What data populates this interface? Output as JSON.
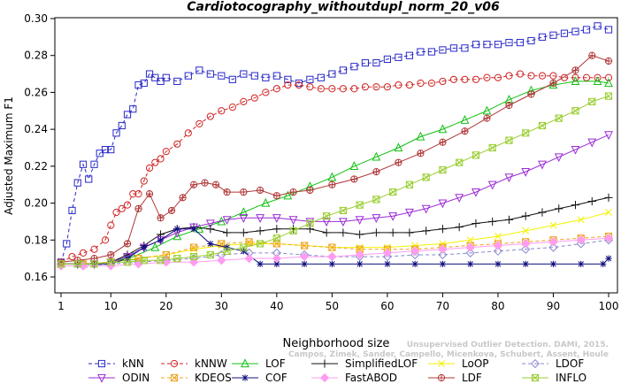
{
  "chart_data": {
    "type": "line",
    "title": "Cardiotocography_withoutdupl_norm_20_v06",
    "xlabel": "Neighborhood size",
    "ylabel": "Adjusted Maximum F1",
    "xlim": [
      1,
      100
    ],
    "ylim": [
      0.155,
      0.3
    ],
    "xticks": [
      1,
      10,
      20,
      30,
      40,
      50,
      60,
      70,
      80,
      90,
      100
    ],
    "yticks": [
      0.16,
      0.18,
      0.2,
      0.22,
      0.24,
      0.26,
      0.28,
      0.3
    ],
    "ytick_labels": [
      "0.16",
      "0.18",
      "0.20",
      "0.22",
      "0.24",
      "0.26",
      "0.28",
      "0.30"
    ],
    "grid": false,
    "legend_position": "bottom",
    "watermark": "Campos, Zimek, Sander, Campello, Micenkova, Schubert, Assent, Houle: On the Evaluation of Unsupervised Outlier Detection. DAMI, 2015.",
    "watermark_lines": [
      "Unsupervised Outlier Detection. DAMI, 2015.",
      "Campos, Zimek, Sander, Campello, Micenkova, Schubert, Assent, Houle"
    ],
    "series": [
      {
        "name": "kNN",
        "color": "#2929c8",
        "marker": "square",
        "dash": "4,3",
        "x": [
          1,
          2,
          3,
          4,
          5,
          6,
          7,
          8,
          9,
          10,
          11,
          12,
          13,
          14,
          15,
          16,
          17,
          18,
          19,
          20,
          22,
          24,
          26,
          28,
          30,
          32,
          34,
          36,
          38,
          40,
          42,
          44,
          46,
          48,
          50,
          52,
          54,
          56,
          58,
          60,
          62,
          64,
          66,
          68,
          70,
          72,
          74,
          76,
          78,
          80,
          82,
          84,
          86,
          88,
          90,
          92,
          94,
          96,
          98,
          100
        ],
        "y": [
          0.168,
          0.178,
          0.196,
          0.211,
          0.221,
          0.213,
          0.221,
          0.227,
          0.229,
          0.229,
          0.238,
          0.242,
          0.248,
          0.251,
          0.264,
          0.265,
          0.27,
          0.268,
          0.266,
          0.268,
          0.266,
          0.269,
          0.272,
          0.27,
          0.269,
          0.267,
          0.27,
          0.269,
          0.268,
          0.269,
          0.267,
          0.265,
          0.267,
          0.268,
          0.27,
          0.272,
          0.274,
          0.276,
          0.276,
          0.278,
          0.279,
          0.28,
          0.282,
          0.282,
          0.283,
          0.284,
          0.284,
          0.286,
          0.286,
          0.286,
          0.287,
          0.287,
          0.288,
          0.29,
          0.291,
          0.292,
          0.293,
          0.294,
          0.296,
          0.294
        ]
      },
      {
        "name": "kNNW",
        "color": "#d02424",
        "marker": "circle",
        "dash": "4,3",
        "x": [
          1,
          3,
          5,
          7,
          9,
          10,
          11,
          12,
          13,
          14,
          15,
          16,
          17,
          18,
          19,
          20,
          22,
          24,
          26,
          28,
          30,
          32,
          34,
          36,
          38,
          40,
          42,
          44,
          46,
          48,
          50,
          52,
          54,
          56,
          58,
          60,
          62,
          64,
          66,
          68,
          70,
          72,
          74,
          76,
          78,
          80,
          82,
          84,
          86,
          88,
          90,
          92,
          94,
          96,
          98,
          100
        ],
        "y": [
          0.168,
          0.171,
          0.173,
          0.175,
          0.18,
          0.188,
          0.195,
          0.197,
          0.199,
          0.205,
          0.205,
          0.212,
          0.219,
          0.222,
          0.224,
          0.228,
          0.232,
          0.238,
          0.243,
          0.247,
          0.25,
          0.252,
          0.255,
          0.257,
          0.26,
          0.262,
          0.264,
          0.264,
          0.263,
          0.262,
          0.262,
          0.262,
          0.262,
          0.263,
          0.263,
          0.263,
          0.264,
          0.264,
          0.265,
          0.265,
          0.266,
          0.267,
          0.267,
          0.267,
          0.268,
          0.268,
          0.269,
          0.27,
          0.269,
          0.269,
          0.269,
          0.268,
          0.268,
          0.268,
          0.268,
          0.268
        ]
      },
      {
        "name": "LOF",
        "color": "#12c012",
        "marker": "triangle",
        "dash": "",
        "x": [
          1,
          5,
          10,
          14,
          18,
          22,
          26,
          30,
          34,
          38,
          42,
          46,
          50,
          54,
          58,
          62,
          66,
          70,
          74,
          78,
          82,
          86,
          90,
          94,
          98,
          100
        ],
        "y": [
          0.167,
          0.167,
          0.168,
          0.171,
          0.176,
          0.182,
          0.186,
          0.19,
          0.195,
          0.2,
          0.204,
          0.209,
          0.214,
          0.22,
          0.225,
          0.23,
          0.236,
          0.24,
          0.245,
          0.25,
          0.256,
          0.261,
          0.264,
          0.266,
          0.266,
          0.265
        ]
      },
      {
        "name": "SimplifiedLOF",
        "color": "#111111",
        "marker": "plus",
        "dash": "",
        "x": [
          1,
          4,
          7,
          10,
          13,
          16,
          19,
          22,
          25,
          28,
          31,
          34,
          37,
          40,
          43,
          46,
          49,
          52,
          55,
          58,
          61,
          64,
          67,
          70,
          73,
          76,
          79,
          82,
          85,
          88,
          91,
          94,
          97,
          100
        ],
        "y": [
          0.167,
          0.167,
          0.167,
          0.168,
          0.172,
          0.177,
          0.183,
          0.186,
          0.187,
          0.186,
          0.184,
          0.184,
          0.185,
          0.186,
          0.186,
          0.186,
          0.184,
          0.184,
          0.183,
          0.184,
          0.184,
          0.184,
          0.185,
          0.186,
          0.187,
          0.189,
          0.19,
          0.191,
          0.193,
          0.195,
          0.197,
          0.199,
          0.201,
          0.203
        ]
      },
      {
        "name": "LoOP",
        "color": "#f2f200",
        "marker": "x",
        "dash": "",
        "x": [
          1,
          5,
          10,
          15,
          20,
          25,
          30,
          35,
          40,
          45,
          50,
          55,
          60,
          65,
          70,
          75,
          80,
          85,
          90,
          95,
          100
        ],
        "y": [
          0.167,
          0.167,
          0.168,
          0.17,
          0.172,
          0.175,
          0.177,
          0.178,
          0.178,
          0.177,
          0.176,
          0.176,
          0.176,
          0.177,
          0.178,
          0.18,
          0.182,
          0.185,
          0.188,
          0.191,
          0.195
        ]
      },
      {
        "name": "LDOF",
        "color": "#8a8ad0",
        "marker": "diamond",
        "dash": "4,3",
        "x": [
          1,
          5,
          10,
          15,
          20,
          25,
          30,
          35,
          40,
          45,
          50,
          55,
          60,
          65,
          70,
          75,
          80,
          85,
          90,
          95,
          100
        ],
        "y": [
          0.166,
          0.166,
          0.167,
          0.168,
          0.169,
          0.17,
          0.172,
          0.173,
          0.173,
          0.172,
          0.171,
          0.171,
          0.171,
          0.172,
          0.172,
          0.173,
          0.174,
          0.175,
          0.176,
          0.178,
          0.18
        ]
      },
      {
        "name": "ODIN",
        "color": "#9b2bd6",
        "marker": "triangle-down",
        "dash": "",
        "x": [
          1,
          4,
          7,
          10,
          13,
          16,
          19,
          22,
          25,
          28,
          31,
          34,
          37,
          40,
          43,
          46,
          49,
          52,
          55,
          58,
          61,
          64,
          67,
          70,
          73,
          76,
          79,
          82,
          85,
          88,
          91,
          94,
          97,
          100
        ],
        "y": [
          0.167,
          0.167,
          0.167,
          0.168,
          0.171,
          0.176,
          0.18,
          0.184,
          0.187,
          0.189,
          0.191,
          0.192,
          0.192,
          0.192,
          0.191,
          0.19,
          0.19,
          0.19,
          0.191,
          0.192,
          0.193,
          0.195,
          0.197,
          0.2,
          0.203,
          0.206,
          0.21,
          0.214,
          0.217,
          0.221,
          0.225,
          0.229,
          0.233,
          0.237
        ]
      },
      {
        "name": "KDEOS",
        "color": "#f0a020",
        "marker": "square-x",
        "dash": "4,3",
        "x": [
          1,
          5,
          10,
          15,
          20,
          25,
          30,
          35,
          40,
          45,
          50,
          55,
          60,
          65,
          70,
          75,
          80,
          85,
          90,
          95,
          100
        ],
        "y": [
          0.167,
          0.167,
          0.168,
          0.17,
          0.172,
          0.176,
          0.178,
          0.179,
          0.178,
          0.177,
          0.176,
          0.175,
          0.175,
          0.175,
          0.176,
          0.177,
          0.178,
          0.179,
          0.18,
          0.181,
          0.182
        ]
      },
      {
        "name": "COF",
        "color": "#101080",
        "marker": "asterisk",
        "dash": "",
        "x": [
          1,
          4,
          7,
          10,
          13,
          16,
          19,
          22,
          25,
          28,
          31,
          34,
          37,
          40,
          45,
          50,
          55,
          60,
          65,
          70,
          75,
          80,
          85,
          90,
          95,
          99,
          100
        ],
        "y": [
          0.167,
          0.167,
          0.167,
          0.167,
          0.17,
          0.176,
          0.18,
          0.186,
          0.186,
          0.178,
          0.176,
          0.174,
          0.167,
          0.167,
          0.167,
          0.167,
          0.167,
          0.167,
          0.167,
          0.167,
          0.167,
          0.167,
          0.167,
          0.167,
          0.167,
          0.167,
          0.17
        ]
      },
      {
        "name": "FastABOD",
        "color": "#ff9cf2",
        "marker": "diamond-filled",
        "dash": "",
        "x": [
          1,
          5,
          10,
          15,
          20,
          25,
          30,
          35,
          40,
          45,
          50,
          55,
          60,
          65,
          70,
          75,
          80,
          85,
          90,
          95,
          100
        ],
        "y": [
          0.166,
          0.166,
          0.166,
          0.167,
          0.168,
          0.168,
          0.169,
          0.17,
          0.17,
          0.171,
          0.171,
          0.172,
          0.173,
          0.174,
          0.175,
          0.176,
          0.177,
          0.178,
          0.179,
          0.18,
          0.181
        ]
      },
      {
        "name": "LDF",
        "color": "#b03838",
        "marker": "circle-plus",
        "dash": "",
        "x": [
          1,
          4,
          7,
          10,
          13,
          15,
          17,
          19,
          21,
          23,
          25,
          27,
          29,
          31,
          34,
          37,
          40,
          43,
          46,
          50,
          54,
          58,
          62,
          66,
          70,
          74,
          78,
          82,
          86,
          90,
          94,
          97,
          100
        ],
        "y": [
          0.168,
          0.169,
          0.17,
          0.172,
          0.178,
          0.197,
          0.205,
          0.192,
          0.196,
          0.203,
          0.21,
          0.211,
          0.21,
          0.206,
          0.206,
          0.207,
          0.204,
          0.206,
          0.207,
          0.21,
          0.213,
          0.217,
          0.222,
          0.227,
          0.233,
          0.239,
          0.246,
          0.253,
          0.259,
          0.265,
          0.272,
          0.28,
          0.277
        ]
      },
      {
        "name": "INFLO",
        "color": "#9acd32",
        "marker": "square-x",
        "dash": "",
        "x": [
          1,
          4,
          7,
          10,
          13,
          16,
          19,
          22,
          25,
          28,
          31,
          34,
          37,
          40,
          43,
          46,
          49,
          52,
          55,
          58,
          61,
          64,
          67,
          70,
          73,
          76,
          79,
          82,
          85,
          88,
          91,
          94,
          97,
          100
        ],
        "y": [
          0.167,
          0.167,
          0.167,
          0.168,
          0.168,
          0.169,
          0.169,
          0.17,
          0.171,
          0.172,
          0.174,
          0.176,
          0.178,
          0.181,
          0.185,
          0.189,
          0.193,
          0.196,
          0.199,
          0.202,
          0.206,
          0.21,
          0.214,
          0.218,
          0.222,
          0.226,
          0.23,
          0.234,
          0.238,
          0.242,
          0.246,
          0.25,
          0.255,
          0.258
        ]
      }
    ]
  }
}
